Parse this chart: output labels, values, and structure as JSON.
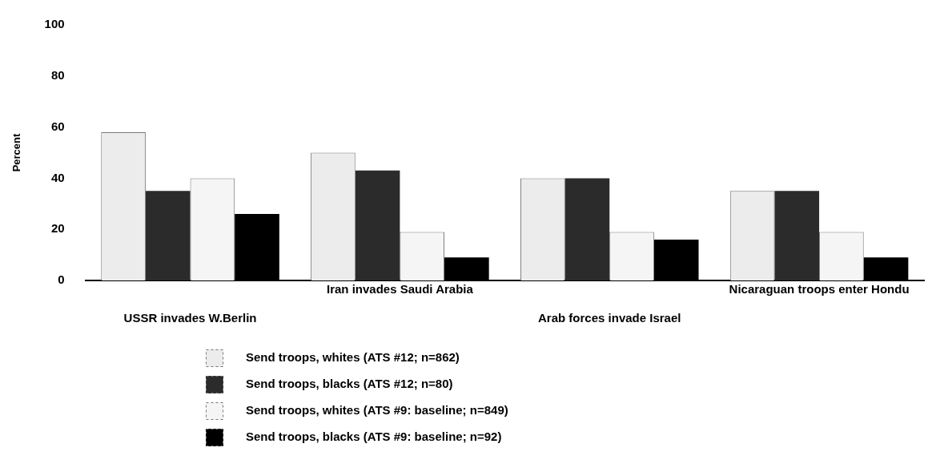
{
  "chart_data": {
    "type": "bar",
    "ylabel": "Percent",
    "categories": [
      "USSR invades W.Berlin",
      "Iran invades Saudi Arabia",
      "Arab forces invade Israel",
      "Nicaraguan troops enter Hondu"
    ],
    "series": [
      {
        "name": "Send troops, whites (ATS #12; n=862)",
        "color": "#ececec",
        "values": [
          58,
          50,
          40,
          35
        ]
      },
      {
        "name": "Send troops, blacks (ATS #12; n=80)",
        "color": "#2b2b2b",
        "values": [
          35,
          43,
          40,
          35
        ]
      },
      {
        "name": "Send troops, whites (ATS #9: baseline; n=849)",
        "color": "#f5f5f5",
        "values": [
          40,
          19,
          19,
          19
        ]
      },
      {
        "name": "Send troops, blacks (ATS #9: baseline; n=92)",
        "color": "#000000",
        "values": [
          26,
          9,
          16,
          9
        ]
      }
    ],
    "ylim": [
      0,
      100
    ],
    "yticks": [
      0,
      20,
      40,
      60,
      80,
      100
    ],
    "grid": false,
    "legend": "bottom"
  }
}
